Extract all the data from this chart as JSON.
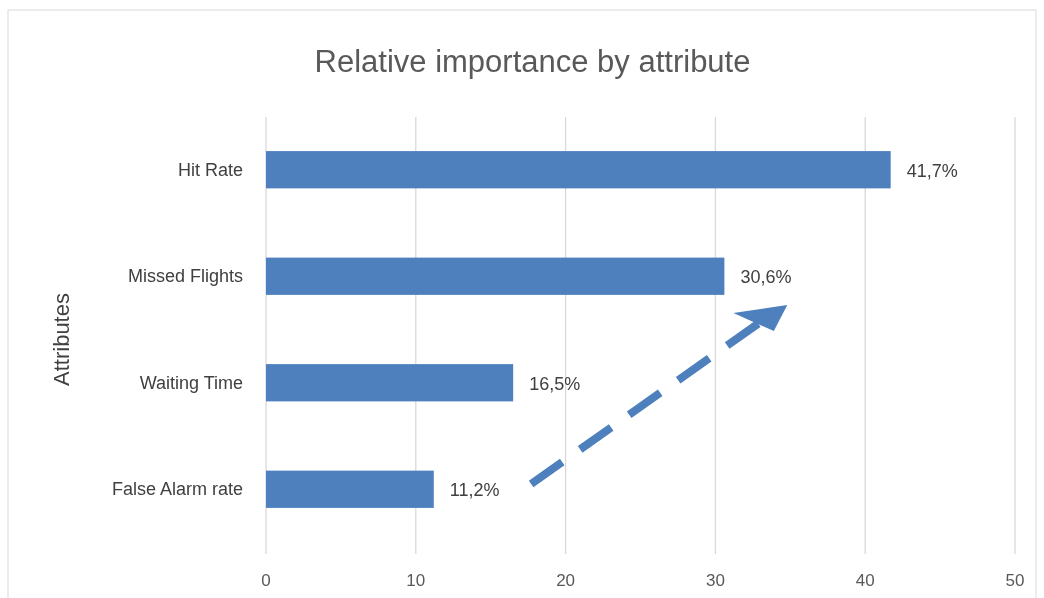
{
  "chart_data": {
    "type": "bar",
    "orientation": "horizontal",
    "title": "Relative importance by attribute",
    "ylabel": "Attributes",
    "categories": [
      "Hit Rate",
      "Missed Flights",
      "Waiting Time",
      "False Alarm rate"
    ],
    "values": [
      41.7,
      30.6,
      16.5,
      11.2
    ],
    "color": "#4e80bd",
    "value_labels": [
      "41,7%",
      "30,6%",
      "16,5%",
      "11,2%"
    ],
    "xlim": [
      0,
      50
    ],
    "xticks": [
      0,
      10,
      20,
      30,
      40,
      50
    ],
    "grid": "x"
  }
}
